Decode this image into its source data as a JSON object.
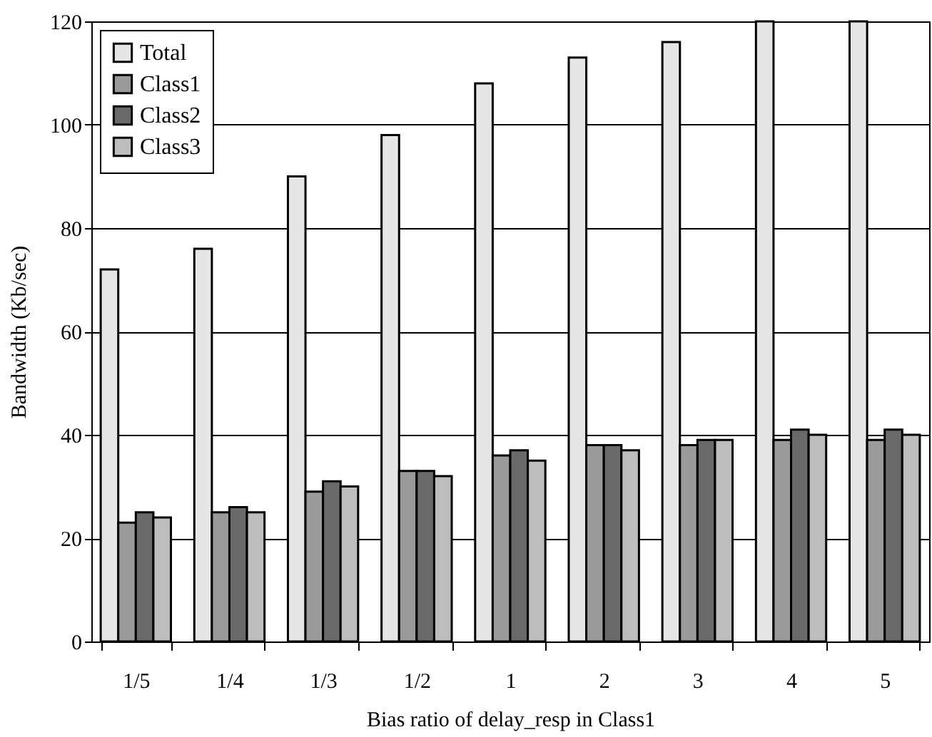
{
  "chart_data": {
    "type": "bar",
    "xlabel": "Bias ratio of delay_resp in Class1",
    "ylabel": "Bandwidth (Kb/sec)",
    "categories": [
      "1/5",
      "1/4",
      "1/3",
      "1/2",
      "1",
      "2",
      "3",
      "4",
      "5"
    ],
    "series": [
      {
        "name": "Total",
        "color": "#e6e6e6",
        "values": [
          72,
          76,
          90,
          98,
          108,
          113,
          116,
          120,
          120
        ]
      },
      {
        "name": "Class1",
        "color": "#9a9a9a",
        "values": [
          23,
          25,
          29,
          33,
          36,
          38,
          38,
          39,
          39
        ]
      },
      {
        "name": "Class2",
        "color": "#6a6a6a",
        "values": [
          25,
          26,
          31,
          33,
          37,
          38,
          39,
          41,
          41
        ]
      },
      {
        "name": "Class3",
        "color": "#bdbdbd",
        "values": [
          24,
          25,
          30,
          32,
          35,
          37,
          39,
          40,
          40
        ]
      }
    ],
    "ylim": [
      0,
      120
    ],
    "yticks": [
      0,
      20,
      40,
      60,
      80,
      100,
      120
    ],
    "grid": "y",
    "legend": "top left"
  }
}
